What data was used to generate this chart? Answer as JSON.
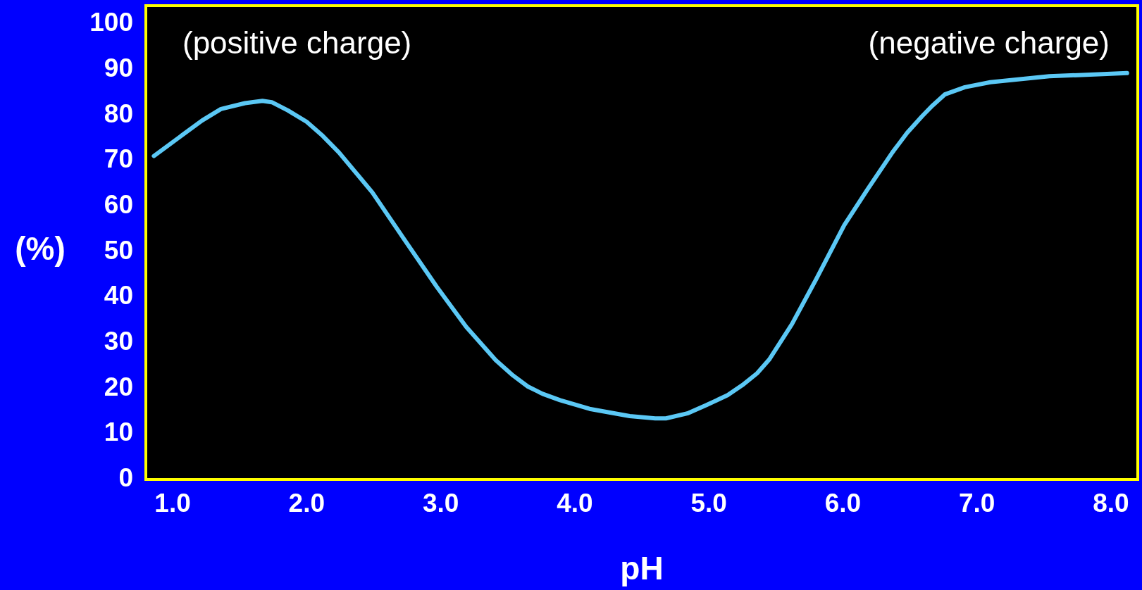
{
  "chart_data": {
    "type": "line",
    "xlabel": "pH",
    "ylabel": "(%)",
    "annotations": [
      "(positive charge)",
      "(negative charge)"
    ],
    "series": [
      {
        "color": "#5bc8f5",
        "x": [
          0.86,
          1.22,
          1.36,
          1.54,
          1.67,
          1.74,
          1.86,
          2.0,
          2.12,
          2.24,
          2.49,
          2.73,
          2.97,
          3.19,
          3.41,
          3.54,
          3.65,
          3.76,
          3.89,
          4.11,
          4.41,
          4.6,
          4.68,
          4.84,
          4.98,
          5.14,
          5.25,
          5.36,
          5.45,
          5.62,
          5.8,
          6.01,
          6.18,
          6.37,
          6.48,
          6.59,
          6.67,
          6.76,
          6.91,
          7.1,
          7.54,
          7.97,
          8.12
        ],
        "values": [
          71.0,
          78.8,
          81.3,
          82.6,
          83.1,
          82.8,
          81.0,
          78.5,
          75.4,
          71.8,
          63.0,
          52.6,
          42.3,
          33.5,
          26.2,
          22.8,
          20.4,
          18.8,
          17.4,
          15.5,
          13.9,
          13.4,
          13.4,
          14.5,
          16.3,
          18.5,
          20.7,
          23.3,
          26.3,
          34.1,
          43.9,
          55.8,
          63.5,
          71.8,
          76.1,
          79.7,
          82.1,
          84.5,
          86.1,
          87.2,
          88.5,
          89.0,
          89.2
        ]
      }
    ],
    "xlim": [
      0.8,
      8.2
    ],
    "ylim": [
      0,
      104
    ],
    "xticks": [
      {
        "value": 1,
        "label": "1.0"
      },
      {
        "value": 2,
        "label": "2.0"
      },
      {
        "value": 3,
        "label": "3.0"
      },
      {
        "value": 4,
        "label": "4.0"
      },
      {
        "value": 5,
        "label": "5.0"
      },
      {
        "value": 6,
        "label": "6.0"
      },
      {
        "value": 7,
        "label": "7.0"
      },
      {
        "value": 8,
        "label": "8.0"
      }
    ],
    "yticks": [
      0,
      10,
      20,
      30,
      40,
      50,
      60,
      70,
      80,
      90,
      100
    ],
    "grid": false,
    "legend": false,
    "marker": "none",
    "line_style": "solid"
  }
}
